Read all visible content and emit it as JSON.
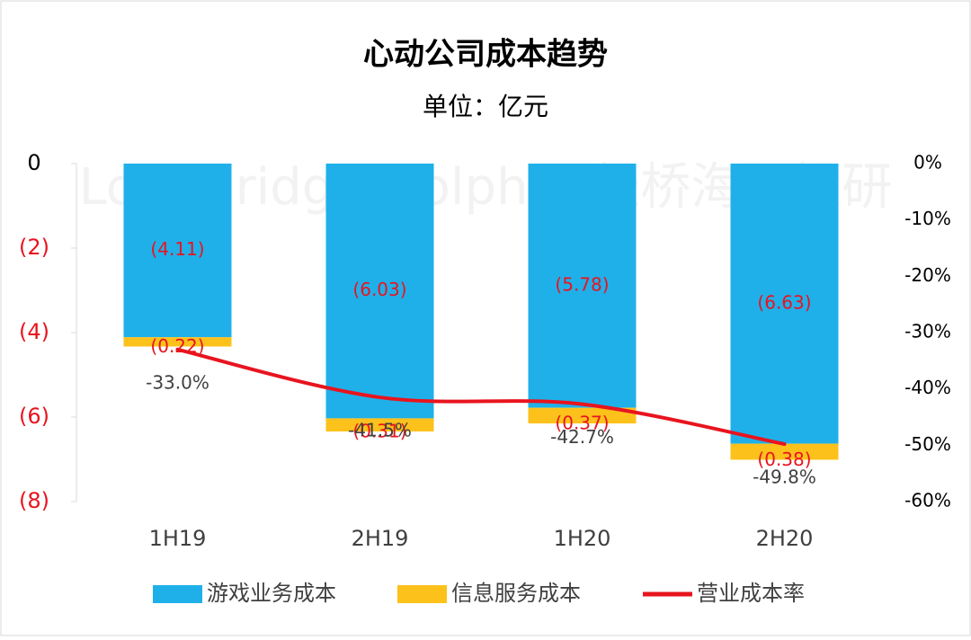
{
  "chart_data": {
    "type": "bar",
    "title": "心动公司成本趋势",
    "subtitle": "单位：亿元",
    "watermark": "LongBridge Dolphin 长桥海豚投研",
    "categories": [
      "1H19",
      "2H19",
      "1H20",
      "2H20"
    ],
    "series": [
      {
        "name": "游戏业务成本",
        "color": "#1fb0ea",
        "type": "bar",
        "values": [
          -4.11,
          -6.03,
          -5.78,
          -6.63
        ],
        "value_labels": [
          "(4.11)",
          "(6.03)",
          "(5.78)",
          "(6.63)"
        ]
      },
      {
        "name": "信息服务成本",
        "color": "#fcc11b",
        "type": "bar",
        "values": [
          -0.22,
          -0.31,
          -0.37,
          -0.38
        ],
        "value_labels": [
          "(0.22)",
          "(0.31)",
          "(0.37)",
          "(0.38)"
        ]
      },
      {
        "name": "营业成本率",
        "color": "#e8141e",
        "type": "line",
        "axis": "y2",
        "values": [
          -33.0,
          -41.5,
          -42.7,
          -49.8
        ],
        "value_labels": [
          "-33.0%",
          "-41.5%",
          "-42.7%",
          "-49.8%"
        ]
      }
    ],
    "stacked": true,
    "ylim": [
      -8,
      0
    ],
    "yticks": [
      0,
      {
        "value": -2,
        "label": "(2)"
      },
      {
        "value": -4,
        "label": "(4)"
      },
      {
        "value": -6,
        "label": "(6)"
      },
      {
        "value": -8,
        "label": "(8)"
      }
    ],
    "y2lim": [
      -60,
      0
    ],
    "y2ticks": [
      {
        "value": 0,
        "label": "0%"
      },
      {
        "value": -10,
        "label": "-10%"
      },
      {
        "value": -20,
        "label": "-20%"
      },
      {
        "value": -30,
        "label": "-30%"
      },
      {
        "value": -40,
        "label": "-40%"
      },
      {
        "value": -50,
        "label": "-50%"
      },
      {
        "value": -60,
        "label": "-60%"
      }
    ],
    "grid": false,
    "legend": "bottom"
  }
}
